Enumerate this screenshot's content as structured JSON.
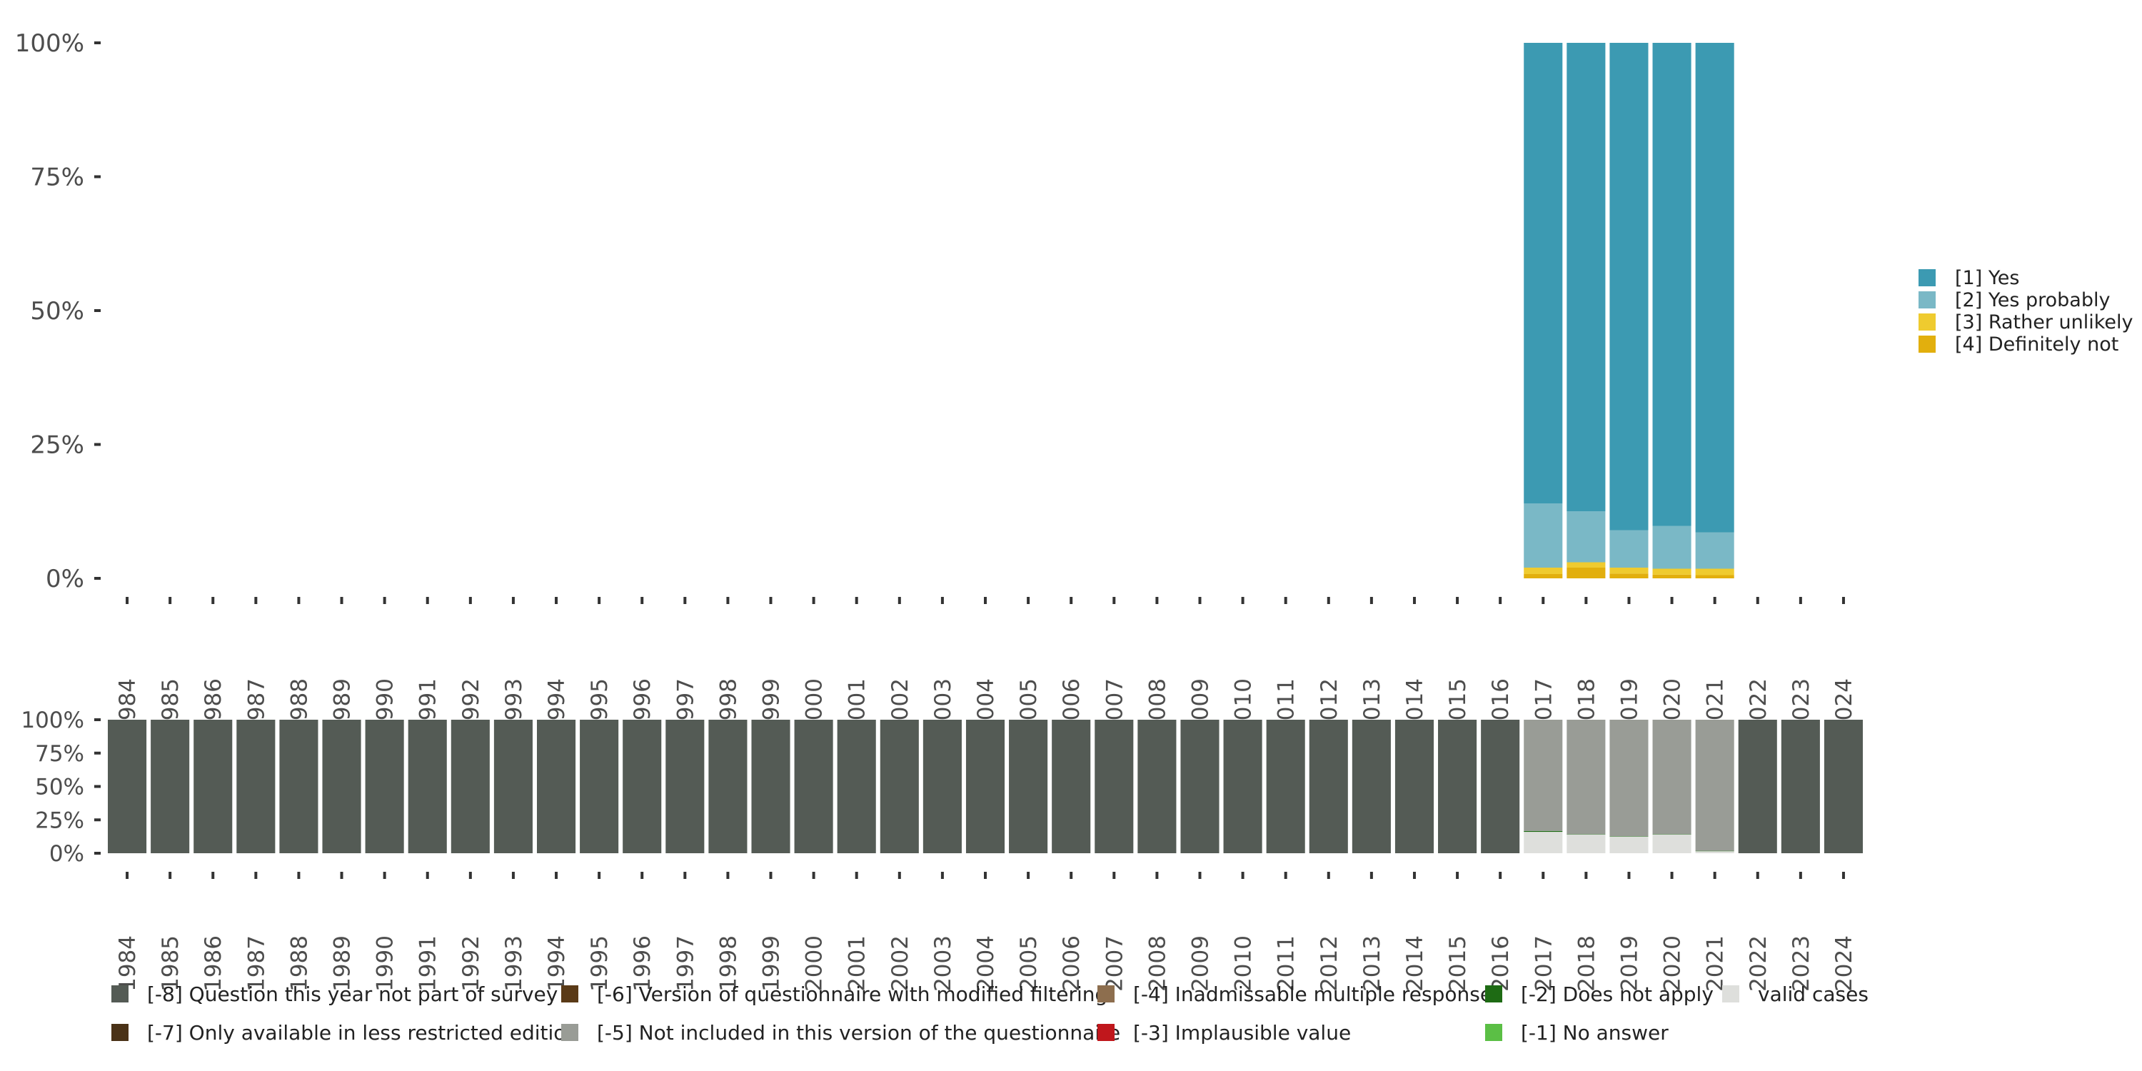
{
  "chart_data": [
    {
      "type": "bar",
      "stacked": true,
      "percent": true,
      "title": "",
      "xlabel": "",
      "ylabel": "",
      "ylim": [
        0,
        100
      ],
      "y_ticks": [
        "0%",
        "25%",
        "50%",
        "75%",
        "100%"
      ],
      "categories": [
        "1984",
        "1985",
        "1986",
        "1987",
        "1988",
        "1989",
        "1990",
        "1991",
        "1992",
        "1993",
        "1994",
        "1995",
        "1996",
        "1997",
        "1998",
        "1999",
        "2000",
        "2001",
        "2002",
        "2003",
        "2004",
        "2005",
        "2006",
        "2007",
        "2008",
        "2009",
        "2010",
        "2011",
        "2012",
        "2013",
        "2014",
        "2015",
        "2016",
        "2017",
        "2018",
        "2019",
        "2020",
        "2021",
        "2022",
        "2023",
        "2024"
      ],
      "legend_position": "right",
      "series": [
        {
          "name": "[4] Definitely not",
          "color": "#E2AF0D",
          "values": {
            "2017": 0.8,
            "2018": 2.0,
            "2019": 0.9,
            "2020": 0.7,
            "2021": 0.6
          }
        },
        {
          "name": "[3] Rather unlikely",
          "color": "#EFCB2F",
          "values": {
            "2017": 1.2,
            "2018": 1.0,
            "2019": 1.1,
            "2020": 1.1,
            "2021": 1.2
          }
        },
        {
          "name": "[2] Yes probably",
          "color": "#7AB8C6",
          "values": {
            "2017": 12.0,
            "2018": 9.5,
            "2019": 7.0,
            "2020": 8.0,
            "2021": 6.8
          }
        },
        {
          "name": "[1] Yes",
          "color": "#3C9AB2",
          "values": {
            "2017": 86.0,
            "2018": 87.5,
            "2019": 91.0,
            "2020": 90.2,
            "2021": 91.4
          }
        }
      ]
    },
    {
      "type": "bar",
      "stacked": true,
      "percent": true,
      "title": "",
      "xlabel": "",
      "ylabel": "",
      "ylim": [
        0,
        100
      ],
      "y_ticks": [
        "0%",
        "25%",
        "50%",
        "75%",
        "100%"
      ],
      "categories": [
        "1984",
        "1985",
        "1986",
        "1987",
        "1988",
        "1989",
        "1990",
        "1991",
        "1992",
        "1993",
        "1994",
        "1995",
        "1996",
        "1997",
        "1998",
        "1999",
        "2000",
        "2001",
        "2002",
        "2003",
        "2004",
        "2005",
        "2006",
        "2007",
        "2008",
        "2009",
        "2010",
        "2011",
        "2012",
        "2013",
        "2014",
        "2015",
        "2016",
        "2017",
        "2018",
        "2019",
        "2020",
        "2021",
        "2022",
        "2023",
        "2024"
      ],
      "legend_position": "bottom",
      "series": [
        {
          "name": "valid cases",
          "color": "#DEDFDC",
          "values": {
            "2017": 16.0,
            "2018": 14.0,
            "2019": 12.5,
            "2020": 14.0,
            "2021": 1.5
          }
        },
        {
          "name": "[-2] Does not apply",
          "color": "#1E6B14",
          "values": {
            "2017": 0.7,
            "2018": 0.3,
            "2019": 0.3,
            "2020": 0.3,
            "2021": 0.3
          }
        },
        {
          "name": "[-5] Not included in this version of the questionnaire",
          "color": "#999C96",
          "values": {
            "2017": 83.3,
            "2018": 85.7,
            "2019": 87.2,
            "2020": 85.7,
            "2021": 98.2
          }
        },
        {
          "name": "[-8] Question this year not part of survey",
          "color": "#545B55",
          "values": {
            "1984": 100,
            "1985": 100,
            "1986": 100,
            "1987": 100,
            "1988": 100,
            "1989": 100,
            "1990": 100,
            "1991": 100,
            "1992": 100,
            "1993": 100,
            "1994": 100,
            "1995": 100,
            "1996": 100,
            "1997": 100,
            "1998": 100,
            "1999": 100,
            "2000": 100,
            "2001": 100,
            "2002": 100,
            "2003": 100,
            "2004": 100,
            "2005": 100,
            "2006": 100,
            "2007": 100,
            "2008": 100,
            "2009": 100,
            "2010": 100,
            "2011": 100,
            "2012": 100,
            "2013": 100,
            "2014": 100,
            "2015": 100,
            "2016": 100,
            "2022": 100,
            "2023": 100,
            "2024": 100
          }
        }
      ],
      "legend": [
        {
          "label": "[-8] Question this year not part of survey",
          "color": "#545B55"
        },
        {
          "label": "[-7] Only available in less restricted edition",
          "color": "#4A3217"
        },
        {
          "label": "[-6] Version of questionnaire with modified filtering",
          "color": "#5A3A17"
        },
        {
          "label": "[-5] Not included in this version of the questionnaire",
          "color": "#999C96"
        },
        {
          "label": "[-4] Inadmissable multiple response",
          "color": "#8D6E4E"
        },
        {
          "label": "[-3] Implausible value",
          "color": "#C0171C"
        },
        {
          "label": "[-2] Does not apply",
          "color": "#1E6B14"
        },
        {
          "label": "[-1] No answer",
          "color": "#5BBF45"
        },
        {
          "label": "valid cases",
          "color": "#DEDFDC"
        }
      ]
    }
  ]
}
